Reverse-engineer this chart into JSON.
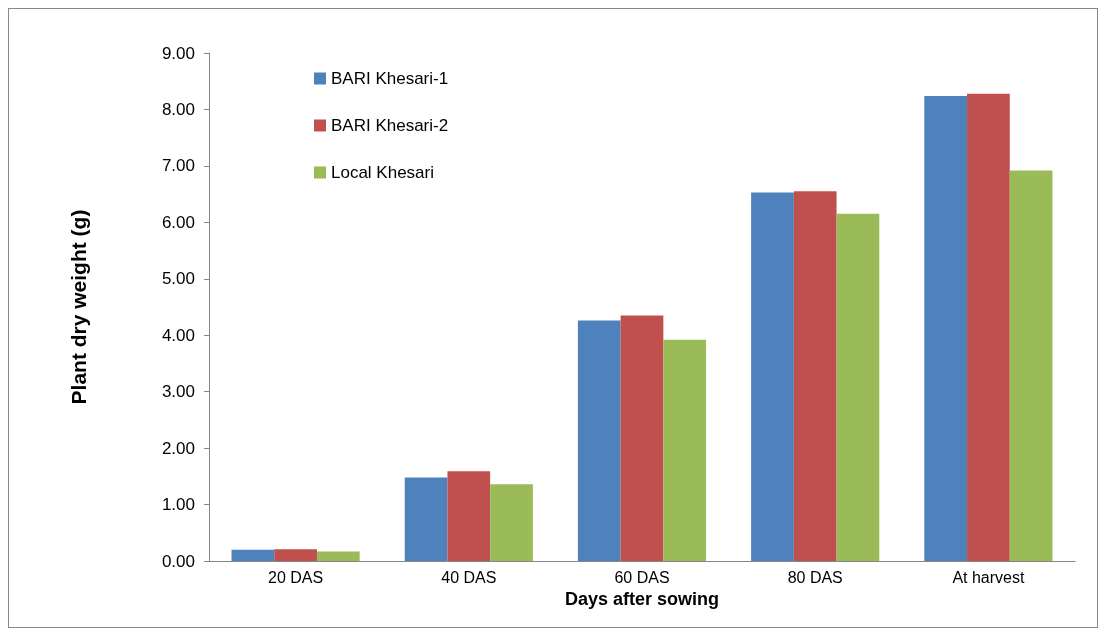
{
  "chart_data": {
    "type": "bar",
    "xlabel": "Days after sowing",
    "ylabel": "Plant dry weight (g)",
    "categories": [
      "20 DAS",
      "40 DAS",
      "60 DAS",
      "80 DAS",
      "At harvest"
    ],
    "series": [
      {
        "name": "BARI Khesari-1",
        "color": "#4f81bd",
        "values": [
          0.2,
          1.48,
          4.26,
          6.53,
          8.24
        ]
      },
      {
        "name": "BARI Khesari-2",
        "color": "#c0504d",
        "values": [
          0.21,
          1.59,
          4.35,
          6.55,
          8.28
        ]
      },
      {
        "name": "Local Khesari",
        "color": "#9bbb59",
        "values": [
          0.17,
          1.36,
          3.92,
          6.15,
          6.92
        ]
      }
    ],
    "ylim": [
      0,
      9
    ],
    "yticks": [
      {
        "value": 0,
        "label": "0.00"
      },
      {
        "value": 1,
        "label": "1.00"
      },
      {
        "value": 2,
        "label": "2.00"
      },
      {
        "value": 3,
        "label": "3.00"
      },
      {
        "value": 4,
        "label": "4.00"
      },
      {
        "value": 5,
        "label": "5.00"
      },
      {
        "value": 6,
        "label": "6.00"
      },
      {
        "value": 7,
        "label": "7.00"
      },
      {
        "value": 8,
        "label": "8.00"
      },
      {
        "value": 9,
        "label": "9.00"
      }
    ],
    "grid": false,
    "legend": "top left"
  }
}
